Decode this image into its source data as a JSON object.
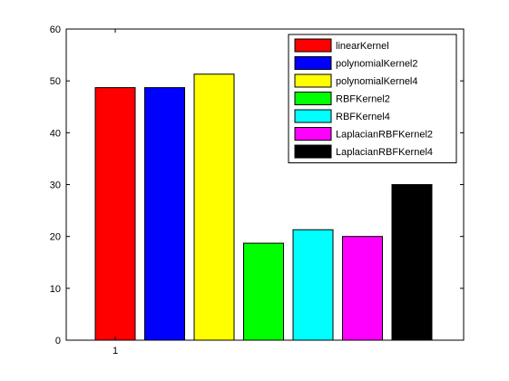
{
  "chart_data": {
    "type": "bar",
    "categories": [
      "1"
    ],
    "series": [
      {
        "name": "linearKernel",
        "values": [
          48.7
        ],
        "color": "#ff0000"
      },
      {
        "name": "polynomialKernel2",
        "values": [
          48.7
        ],
        "color": "#0000ff"
      },
      {
        "name": "polynomialKernel4",
        "values": [
          51.3
        ],
        "color": "#ffff00"
      },
      {
        "name": "RBFKernel2",
        "values": [
          18.7
        ],
        "color": "#00ff00"
      },
      {
        "name": "RBFKernel4",
        "values": [
          21.3
        ],
        "color": "#00ffff"
      },
      {
        "name": "LaplacianRBFKernel2",
        "values": [
          20.0
        ],
        "color": "#ff00ff"
      },
      {
        "name": "LaplacianRBFKernel4",
        "values": [
          30.0
        ],
        "color": "#000000"
      }
    ],
    "title": "",
    "xlabel": "",
    "ylabel": "",
    "ylim": [
      0,
      60
    ],
    "yticks": [
      "0",
      "10",
      "20",
      "30",
      "40",
      "50",
      "60"
    ],
    "xticks": [
      "1"
    ],
    "grid": false,
    "legend_position": "top-right"
  }
}
